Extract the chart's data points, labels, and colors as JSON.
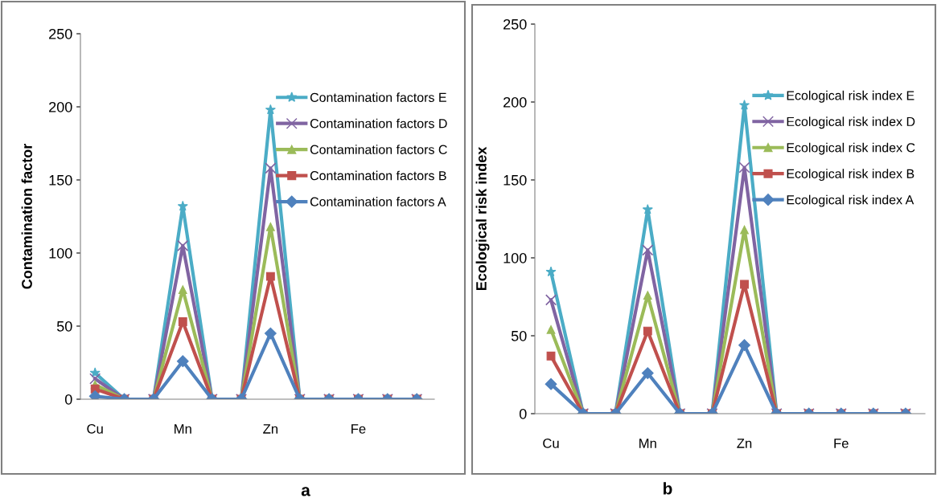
{
  "chart_data": [
    {
      "type": "line",
      "categories": [
        "Cu",
        null,
        null,
        "Mn",
        null,
        null,
        "Zn",
        null,
        null,
        "Fe",
        null,
        null
      ],
      "ylabel": "Contamination factor",
      "ylim": [
        0,
        250
      ],
      "yticks": [
        0,
        50,
        100,
        150,
        200,
        250
      ],
      "grid": false,
      "legend": "right",
      "annotations": [
        "a"
      ],
      "series": [
        {
          "name": "Contamination factors E",
          "color": "#4bacc6",
          "marker": "star",
          "values": [
            18,
            0,
            0,
            132,
            0,
            0,
            198,
            0,
            0,
            null,
            null,
            null
          ]
        },
        {
          "name": "Contamination factors D",
          "color": "#8064a2",
          "marker": "cross",
          "values": [
            14,
            0,
            0,
            105,
            0,
            0,
            158,
            0,
            0,
            0,
            0,
            0
          ]
        },
        {
          "name": "Contamination factors C",
          "color": "#9bbb59",
          "marker": "triangle",
          "values": [
            10,
            0,
            0,
            75,
            0,
            0,
            118,
            0,
            0,
            null,
            null,
            null
          ]
        },
        {
          "name": "Contamination factors B",
          "color": "#c0504d",
          "marker": "square",
          "values": [
            7,
            0,
            0,
            53,
            0,
            0,
            84,
            0,
            0,
            0,
            0,
            0
          ]
        },
        {
          "name": "Contamination factors A",
          "color": "#4f81bd",
          "marker": "diamond",
          "values": [
            2,
            0,
            0,
            26,
            0,
            0,
            45,
            0,
            0,
            0,
            0,
            0
          ]
        }
      ]
    },
    {
      "type": "line",
      "categories": [
        "Cu",
        null,
        null,
        "Mn",
        null,
        null,
        "Zn",
        null,
        null,
        "Fe",
        null,
        null
      ],
      "ylabel": "Ecological risk index",
      "ylim": [
        0,
        250
      ],
      "yticks": [
        0,
        50,
        100,
        150,
        200,
        250
      ],
      "grid": false,
      "legend": "right",
      "annotations": [
        "b"
      ],
      "series": [
        {
          "name": "Ecological risk index E",
          "color": "#4bacc6",
          "marker": "star",
          "values": [
            91,
            0,
            0,
            131,
            0,
            0,
            198,
            0,
            0,
            null,
            null,
            null
          ]
        },
        {
          "name": "Ecological risk index D",
          "color": "#8064a2",
          "marker": "cross",
          "values": [
            73,
            0,
            0,
            105,
            0,
            0,
            158,
            0,
            0,
            0,
            0,
            0
          ]
        },
        {
          "name": "Ecological risk index C",
          "color": "#9bbb59",
          "marker": "triangle",
          "values": [
            54,
            0,
            0,
            76,
            0,
            0,
            118,
            0,
            0,
            null,
            null,
            null
          ]
        },
        {
          "name": "Ecological risk index B",
          "color": "#c0504d",
          "marker": "square",
          "values": [
            37,
            0,
            0,
            53,
            0,
            0,
            83,
            0,
            0,
            0,
            0,
            0
          ]
        },
        {
          "name": "Ecological risk index A",
          "color": "#4f81bd",
          "marker": "diamond",
          "values": [
            19,
            0,
            0,
            26,
            0,
            0,
            44,
            0,
            0,
            0,
            0,
            0
          ]
        }
      ]
    }
  ]
}
